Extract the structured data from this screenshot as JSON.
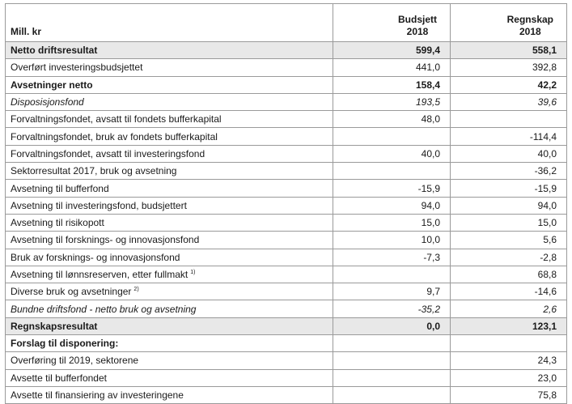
{
  "header": {
    "label": "Mill. kr",
    "col1_line1": "Budsjett",
    "col1_line2": "2018",
    "col2_line1": "Regnskap",
    "col2_line2": "2018"
  },
  "rows": [
    {
      "label": "Netto driftsresultat",
      "budsjett": "599,4",
      "regnskap": "558,1",
      "style": "shaded-bold"
    },
    {
      "label": "Overført investeringsbudsjettet",
      "budsjett": "441,0",
      "regnskap": "392,8",
      "style": ""
    },
    {
      "label": "Avsetninger netto",
      "budsjett": "158,4",
      "regnskap": "42,2",
      "style": "bold"
    },
    {
      "label": "Disposisjonsfond",
      "budsjett": "193,5",
      "regnskap": "39,6",
      "style": "italic"
    },
    {
      "label": "Forvaltningsfondet, avsatt til fondets bufferkapital",
      "budsjett": "48,0",
      "regnskap": "",
      "style": ""
    },
    {
      "label": "Forvaltningsfondet, bruk av fondets bufferkapital",
      "budsjett": "",
      "regnskap": "-114,4",
      "style": ""
    },
    {
      "label": "Forvaltningsfondet, avsatt til investeringsfond",
      "budsjett": "40,0",
      "regnskap": "40,0",
      "style": ""
    },
    {
      "label": "Sektorresultat 2017, bruk og avsetning",
      "budsjett": "",
      "regnskap": "-36,2",
      "style": ""
    },
    {
      "label": "Avsetning til bufferfond",
      "budsjett": "-15,9",
      "regnskap": "-15,9",
      "style": ""
    },
    {
      "label": "Avsetning til investeringsfond, budsjettert",
      "budsjett": "94,0",
      "regnskap": "94,0",
      "style": ""
    },
    {
      "label": "Avsetning til risikopott",
      "budsjett": "15,0",
      "regnskap": "15,0",
      "style": ""
    },
    {
      "label": "Avsetning til forsknings- og innovasjonsfond",
      "budsjett": "10,0",
      "regnskap": "5,6",
      "style": ""
    },
    {
      "label": "Bruk av forsknings- og innovasjonsfond",
      "budsjett": "-7,3",
      "regnskap": "-2,8",
      "style": ""
    },
    {
      "label": "Avsetning til lønnsreserven, etter fullmakt",
      "note": "1)",
      "budsjett": "",
      "regnskap": "68,8",
      "style": ""
    },
    {
      "label": "Diverse bruk og avsetninger",
      "note": "2)",
      "budsjett": "9,7",
      "regnskap": "-14,6",
      "style": ""
    },
    {
      "label": "Bundne driftsfond - netto bruk og avsetning",
      "budsjett": "-35,2",
      "regnskap": "2,6",
      "style": "italic"
    },
    {
      "label": "Regnskapsresultat",
      "budsjett": "0,0",
      "regnskap": "123,1",
      "style": "shaded-bold"
    },
    {
      "label": "Forslag til disponering:",
      "budsjett": "",
      "regnskap": "",
      "style": "bold"
    },
    {
      "label": "Overføring til 2019, sektorene",
      "budsjett": "",
      "regnskap": "24,3",
      "style": ""
    },
    {
      "label": "Avsette til bufferfondet",
      "budsjett": "",
      "regnskap": "23,0",
      "style": ""
    },
    {
      "label": "Avsette til finansiering av investeringene",
      "budsjett": "",
      "regnskap": "75,8",
      "style": ""
    }
  ]
}
